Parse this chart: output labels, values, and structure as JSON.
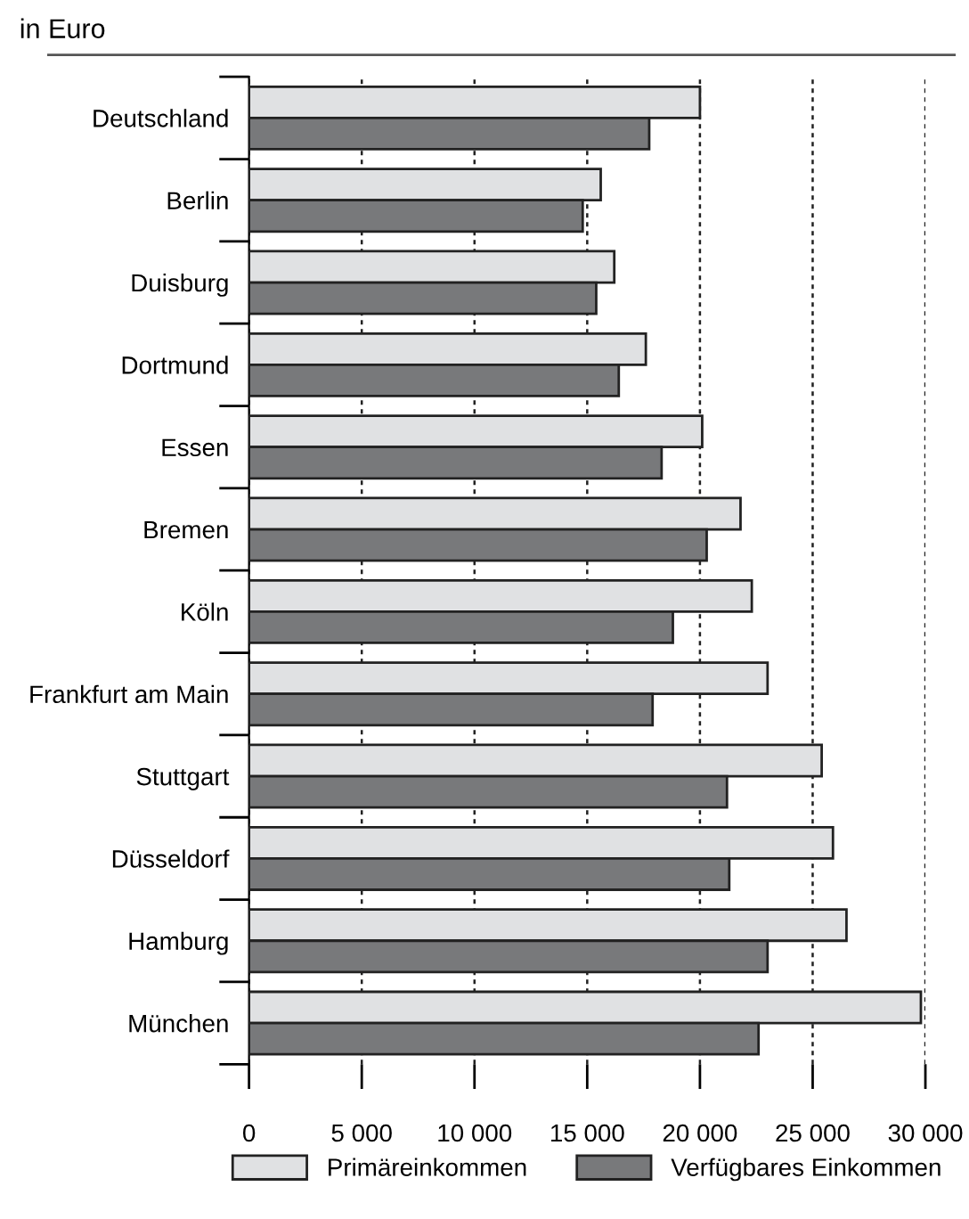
{
  "chart_data": {
    "type": "bar",
    "orientation": "horizontal",
    "subtitle": "in Euro",
    "categories": [
      "Deutschland",
      "Berlin",
      "Duisburg",
      "Dortmund",
      "Essen",
      "Bremen",
      "Köln",
      "Frankfurt am Main",
      "Stuttgart",
      "Düsseldorf",
      "Hamburg",
      "München"
    ],
    "series": [
      {
        "name": "Primäreinkommen",
        "color": "#e0e1e3",
        "values": [
          20000,
          15600,
          16200,
          17600,
          20100,
          21800,
          22300,
          23000,
          25400,
          25900,
          26500,
          29800
        ]
      },
      {
        "name": "Verfügbares Einkommen",
        "color": "#78797b",
        "values": [
          17750,
          14800,
          15400,
          16400,
          18300,
          20300,
          18800,
          17900,
          21200,
          21300,
          23000,
          22600
        ]
      }
    ],
    "xlim": [
      0,
      30000
    ],
    "xticks": [
      0,
      {
        "value": 5000,
        "label": "5 000"
      },
      {
        "value": 10000,
        "label": "10 000"
      },
      {
        "value": 15000,
        "label": "15 000"
      },
      {
        "value": 20000,
        "label": "20 000"
      },
      {
        "value": 25000,
        "label": "25 000"
      },
      {
        "value": 30000,
        "label": "30 000"
      }
    ],
    "grid": "x",
    "legend": "bottom"
  }
}
